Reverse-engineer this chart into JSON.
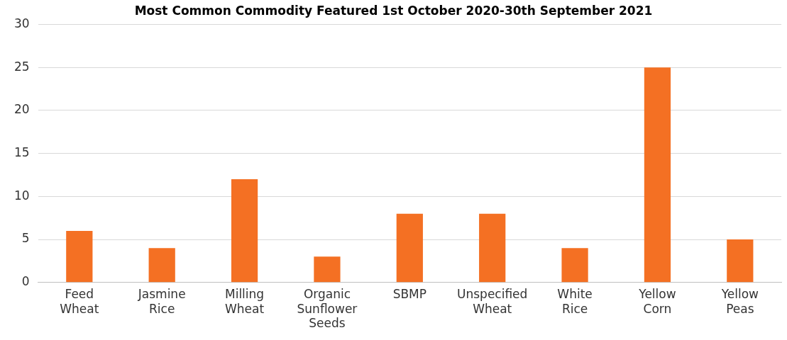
{
  "chart_data": {
    "type": "bar",
    "title": "Most Common Commodity Featured 1st October 2020-30th September 2021",
    "categories": [
      "Feed Wheat",
      "Jasmine Rice",
      "Milling Wheat",
      "Organic Sunflower Seeds",
      "SBMP",
      "Unspecified Wheat",
      "White Rice",
      "Yellow Corn",
      "Yellow Peas"
    ],
    "values": [
      6,
      4,
      12,
      3,
      8,
      8,
      4,
      25,
      5
    ],
    "color": "#f47023",
    "ylim": [
      0,
      30
    ],
    "yticks": [
      0,
      5,
      10,
      15,
      20,
      25,
      30
    ],
    "grid": "y"
  }
}
